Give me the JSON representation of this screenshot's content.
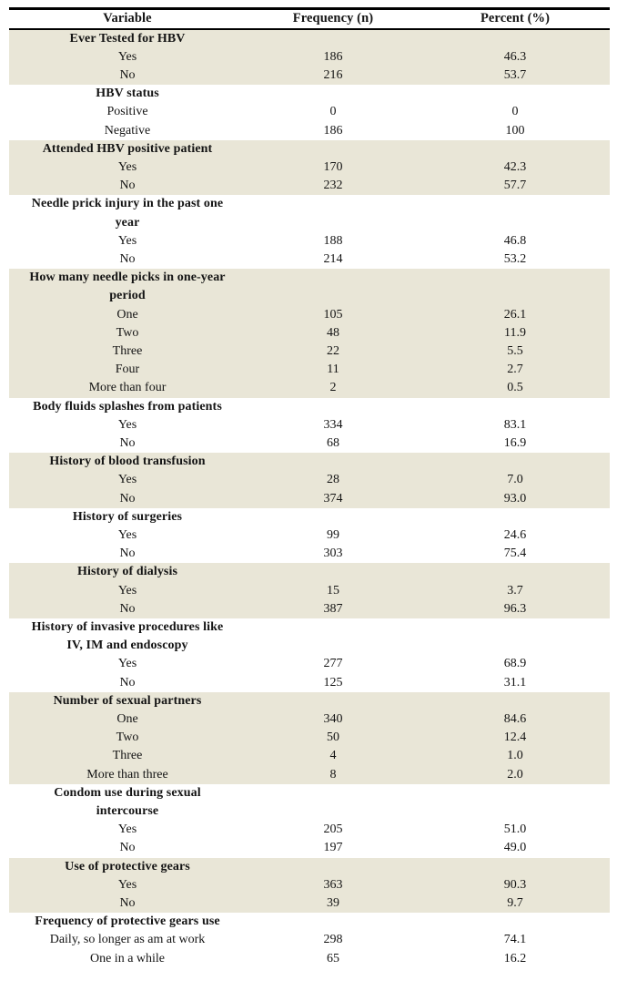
{
  "colors": {
    "section_shade": "#e9e6d7",
    "border": "#000000",
    "text": "#141414",
    "page_background": "#ffffff"
  },
  "table": {
    "columns": [
      {
        "label": "Variable"
      },
      {
        "label": "Frequency (n)"
      },
      {
        "label": "Percent (%)"
      }
    ],
    "sections": [
      {
        "title_lines": [
          "Ever Tested for HBV"
        ],
        "rows": [
          {
            "label": "Yes",
            "n": "186",
            "pct": "46.3"
          },
          {
            "label": "No",
            "n": "216",
            "pct": "53.7"
          }
        ]
      },
      {
        "title_lines": [
          "HBV status"
        ],
        "rows": [
          {
            "label": "Positive",
            "n": "0",
            "pct": "0"
          },
          {
            "label": "Negative",
            "n": "186",
            "pct": "100"
          }
        ]
      },
      {
        "title_lines": [
          "Attended HBV positive patient"
        ],
        "rows": [
          {
            "label": "Yes",
            "n": "170",
            "pct": "42.3"
          },
          {
            "label": "No",
            "n": "232",
            "pct": "57.7"
          }
        ]
      },
      {
        "title_lines": [
          "Needle prick injury in the past one",
          "year"
        ],
        "rows": [
          {
            "label": "Yes",
            "n": "188",
            "pct": "46.8"
          },
          {
            "label": "No",
            "n": "214",
            "pct": "53.2"
          }
        ]
      },
      {
        "title_lines": [
          "How many needle picks in one-year",
          "period"
        ],
        "rows": [
          {
            "label": "One",
            "n": "105",
            "pct": "26.1"
          },
          {
            "label": "Two",
            "n": "48",
            "pct": "11.9"
          },
          {
            "label": "Three",
            "n": "22",
            "pct": "5.5"
          },
          {
            "label": "Four",
            "n": "11",
            "pct": "2.7"
          },
          {
            "label": "More than four",
            "n": "2",
            "pct": "0.5"
          }
        ]
      },
      {
        "title_lines": [
          "Body fluids splashes from patients"
        ],
        "rows": [
          {
            "label": "Yes",
            "n": "334",
            "pct": "83.1"
          },
          {
            "label": "No",
            "n": "68",
            "pct": "16.9"
          }
        ]
      },
      {
        "title_lines": [
          "History of blood transfusion"
        ],
        "rows": [
          {
            "label": "Yes",
            "n": "28",
            "pct": "7.0"
          },
          {
            "label": "No",
            "n": "374",
            "pct": "93.0"
          }
        ]
      },
      {
        "title_lines": [
          "History of surgeries"
        ],
        "rows": [
          {
            "label": "Yes",
            "n": "99",
            "pct": "24.6"
          },
          {
            "label": "No",
            "n": "303",
            "pct": "75.4"
          }
        ]
      },
      {
        "title_lines": [
          "History of dialysis"
        ],
        "rows": [
          {
            "label": "Yes",
            "n": "15",
            "pct": "3.7"
          },
          {
            "label": "No",
            "n": "387",
            "pct": "96.3"
          }
        ]
      },
      {
        "title_lines": [
          "History of invasive procedures like",
          "IV, IM and endoscopy"
        ],
        "rows": [
          {
            "label": "Yes",
            "n": "277",
            "pct": "68.9"
          },
          {
            "label": "No",
            "n": "125",
            "pct": "31.1"
          }
        ]
      },
      {
        "title_lines": [
          "Number of sexual partners"
        ],
        "rows": [
          {
            "label": "One",
            "n": "340",
            "pct": "84.6"
          },
          {
            "label": "Two",
            "n": "50",
            "pct": "12.4"
          },
          {
            "label": "Three",
            "n": "4",
            "pct": "1.0"
          },
          {
            "label": "More than three",
            "n": "8",
            "pct": "2.0"
          }
        ]
      },
      {
        "title_lines": [
          "Condom use during sexual",
          "intercourse"
        ],
        "rows": [
          {
            "label": "Yes",
            "n": "205",
            "pct": "51.0"
          },
          {
            "label": "No",
            "n": "197",
            "pct": "49.0"
          }
        ]
      },
      {
        "title_lines": [
          "Use of protective gears"
        ],
        "rows": [
          {
            "label": "Yes",
            "n": "363",
            "pct": "90.3"
          },
          {
            "label": "No",
            "n": "39",
            "pct": "9.7"
          }
        ]
      },
      {
        "title_lines": [
          "Frequency of protective gears use"
        ],
        "rows": [
          {
            "label": "Daily, so longer as am at work",
            "n": "298",
            "pct": "74.1"
          },
          {
            "label": "One in a while",
            "n": "65",
            "pct": "16.2"
          }
        ]
      }
    ]
  }
}
